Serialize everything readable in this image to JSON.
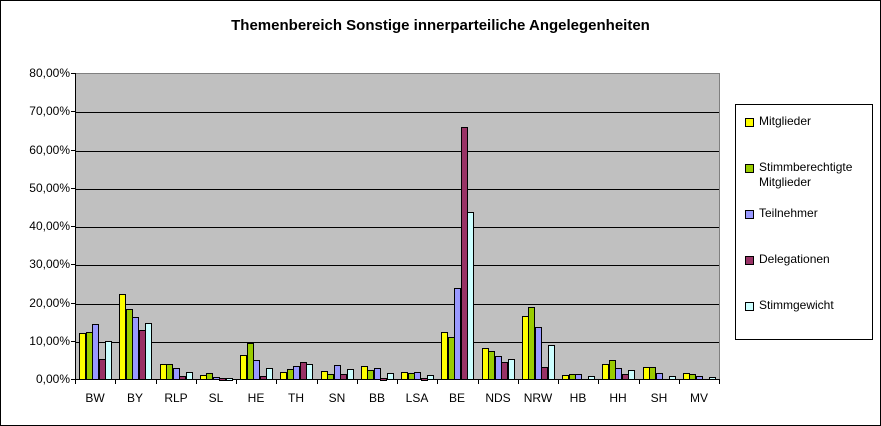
{
  "chart_data": {
    "type": "bar",
    "title": "Themenbereich Sonstige innerparteiliche Angelegenheiten",
    "xlabel": "",
    "ylabel": "",
    "ylim": [
      0,
      80
    ],
    "y_ticks": [
      "0,00%",
      "10,00%",
      "20,00%",
      "30,00%",
      "40,00%",
      "50,00%",
      "60,00%",
      "70,00%",
      "80,00%"
    ],
    "grid": true,
    "legend_position": "right",
    "categories": [
      "BW",
      "BY",
      "RLP",
      "SL",
      "HE",
      "TH",
      "SN",
      "BB",
      "LSA",
      "BE",
      "NDS",
      "NRW",
      "HB",
      "HH",
      "SH",
      "MV"
    ],
    "series": [
      {
        "name": "Mitglieder",
        "color": "#FFFF00",
        "values": [
          11.9,
          22.2,
          3.8,
          1.1,
          6.4,
          1.8,
          2.1,
          3.5,
          1.9,
          12.4,
          8.2,
          16.4,
          1.1,
          3.8,
          3.2,
          1.6
        ]
      },
      {
        "name": "Stimmberechtigte Mitglieder",
        "color": "#99CC00",
        "values": [
          12.4,
          18.2,
          3.8,
          1.6,
          9.3,
          2.6,
          1.4,
          2.4,
          1.6,
          11.0,
          7.4,
          18.9,
          1.4,
          5.0,
          3.2,
          1.3
        ]
      },
      {
        "name": "Teilnehmer",
        "color": "#9999FF",
        "values": [
          14.3,
          16.3,
          2.9,
          0.5,
          5.0,
          3.5,
          3.7,
          2.9,
          1.8,
          23.9,
          5.9,
          13.5,
          1.4,
          3.0,
          1.6,
          0.8
        ]
      },
      {
        "name": "Delegationen",
        "color": "#993366",
        "values": [
          5.3,
          12.9,
          0.8,
          0.3,
          0.8,
          4.5,
          1.4,
          0.2,
          0.1,
          65.8,
          4.5,
          3.2,
          0.0,
          1.4,
          0.0,
          0.0
        ]
      },
      {
        "name": "Stimmgewicht",
        "color": "#CCFFFF",
        "values": [
          10.0,
          14.7,
          1.8,
          0.3,
          3.0,
          4.0,
          2.7,
          1.6,
          1.1,
          43.6,
          5.1,
          8.8,
          0.9,
          2.4,
          0.9,
          0.6
        ]
      }
    ]
  },
  "legend": {
    "items": [
      "Mitglieder",
      "Stimmberechtigte Mitglieder",
      "Teilnehmer",
      "Delegationen",
      "Stimmgewicht"
    ]
  }
}
